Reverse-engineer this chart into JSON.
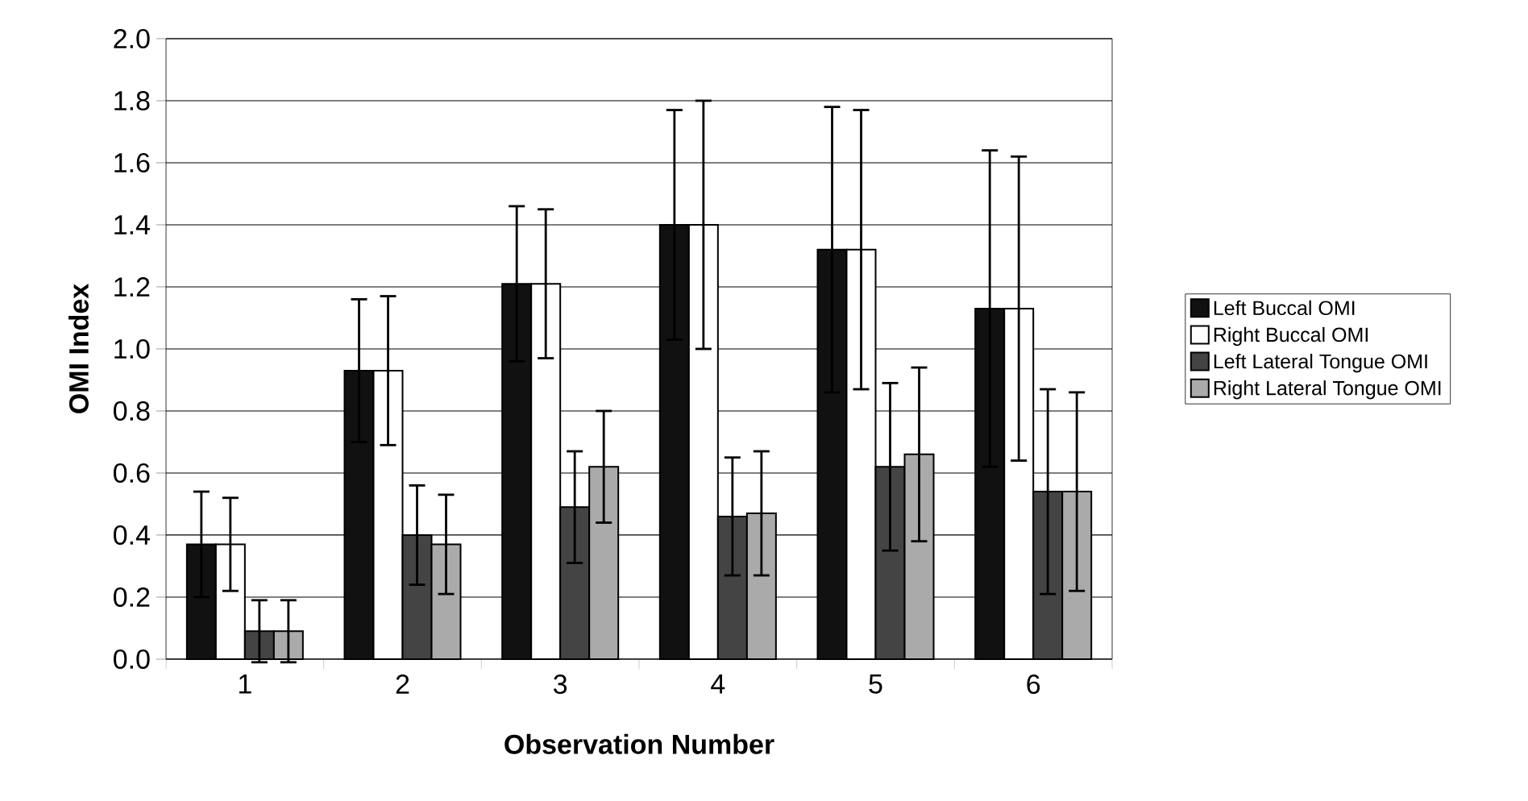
{
  "chart_data": {
    "type": "bar",
    "xlabel": "Observation Number",
    "ylabel": "OMI Index",
    "categories": [
      "1",
      "2",
      "3",
      "4",
      "5",
      "6"
    ],
    "series": [
      {
        "name": "Left Buccal OMI",
        "color": "#111111",
        "values": [
          0.37,
          0.93,
          1.21,
          1.4,
          1.32,
          1.13
        ],
        "errors": [
          0.17,
          0.23,
          0.25,
          0.37,
          0.46,
          0.51
        ]
      },
      {
        "name": "Right Buccal OMI",
        "color": "#ffffff",
        "values": [
          0.37,
          0.93,
          1.21,
          1.4,
          1.32,
          1.13
        ],
        "errors": [
          0.15,
          0.24,
          0.24,
          0.4,
          0.45,
          0.49
        ]
      },
      {
        "name": "Left Lateral Tongue OMI",
        "color": "#444444",
        "values": [
          0.09,
          0.4,
          0.49,
          0.46,
          0.62,
          0.54
        ],
        "errors": [
          0.1,
          0.16,
          0.18,
          0.19,
          0.27,
          0.33
        ]
      },
      {
        "name": "Right Lateral Tongue OMI",
        "color": "#aaaaaa",
        "values": [
          0.09,
          0.37,
          0.62,
          0.47,
          0.66,
          0.54
        ],
        "errors": [
          0.1,
          0.16,
          0.18,
          0.2,
          0.28,
          0.32
        ]
      }
    ],
    "ylim": [
      0,
      2.0
    ],
    "yticks": [
      {
        "value": 0,
        "label": "0.0"
      },
      {
        "value": 0.2,
        "label": "0.2"
      },
      {
        "value": 0.4,
        "label": "0.4"
      },
      {
        "value": 0.6,
        "label": "0.6"
      },
      {
        "value": 0.8,
        "label": "0.8"
      },
      {
        "value": 1.0,
        "label": "1.0"
      },
      {
        "value": 1.2,
        "label": "1.2"
      },
      {
        "value": 1.4,
        "label": "1.4"
      },
      {
        "value": 1.6,
        "label": "1.6"
      },
      {
        "value": 1.8,
        "label": "1.8"
      },
      {
        "value": 2.0,
        "label": "2.0"
      }
    ],
    "grid": "y",
    "legend": "right"
  }
}
